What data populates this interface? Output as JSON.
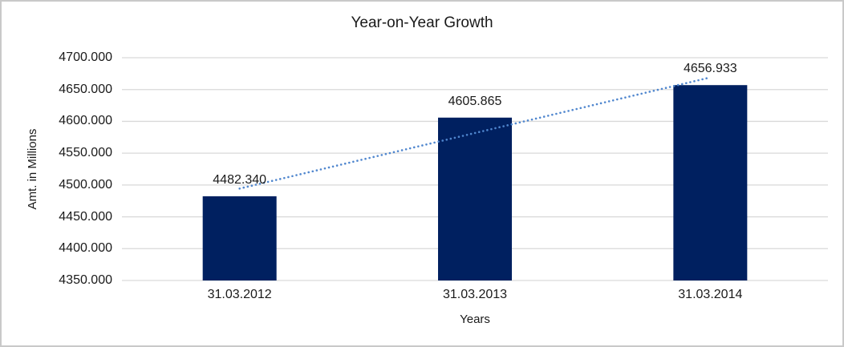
{
  "chart_data": {
    "type": "bar",
    "title": "Year-on-Year Growth",
    "xlabel": "Years",
    "ylabel": "Amt. in Millions",
    "categories": [
      "31.03.2012",
      "31.03.2013",
      "31.03.2014"
    ],
    "values": [
      4482.34,
      4605.865,
      4656.933
    ],
    "value_labels": [
      "4482.340",
      "4605.865",
      "4656.933"
    ],
    "ylim": [
      4350,
      4700
    ],
    "ytick_step": 50,
    "ytick_labels": [
      "4350.000",
      "4400.000",
      "4450.000",
      "4500.000",
      "4550.000",
      "4600.000",
      "4650.000",
      "4700.000"
    ],
    "grid": "horizontal",
    "legend": "none",
    "trendline": {
      "type": "linear",
      "style": "dotted"
    },
    "colors": {
      "bar": "#002060",
      "trendline": "#4f86ce",
      "gridline": "#d9d9d9",
      "axis_line": "#d9d9d9",
      "text": "#1a1a1a",
      "border": "#c9c9c9"
    }
  }
}
